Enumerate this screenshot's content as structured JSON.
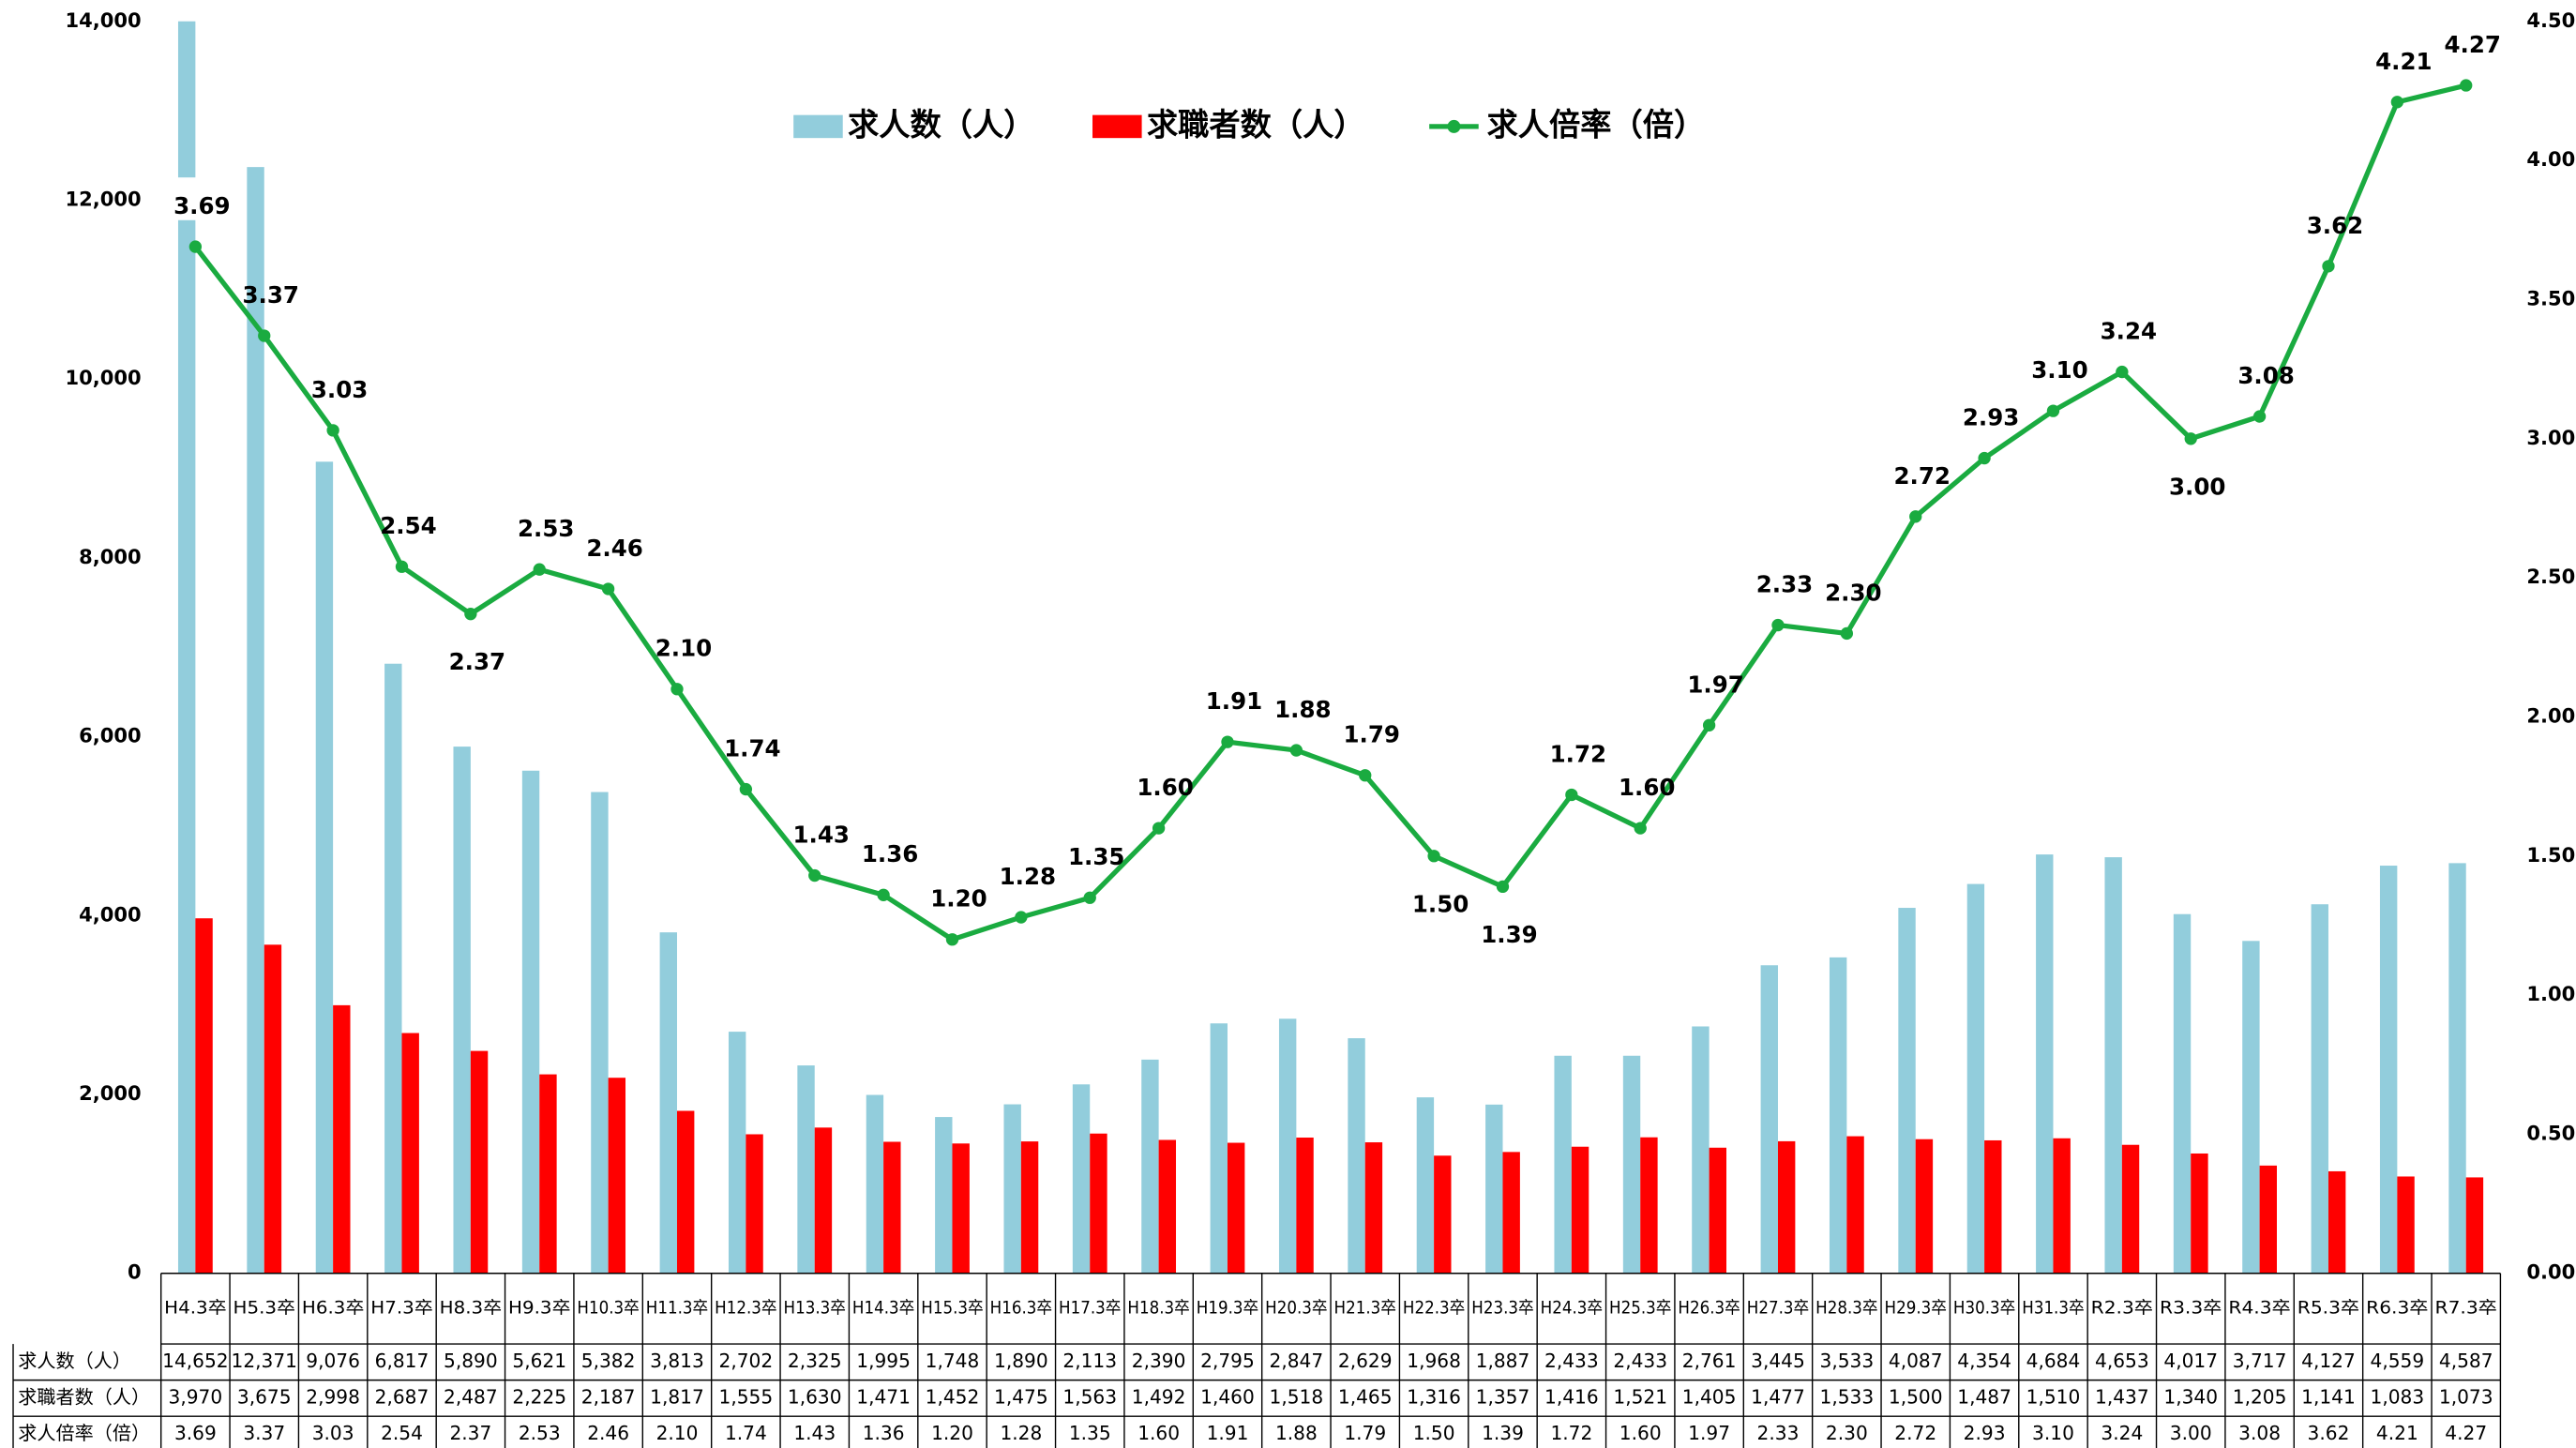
{
  "chart_data": {
    "type": "bar-line",
    "categories": [
      "H4.3卒",
      "H5.3卒",
      "H6.3卒",
      "H7.3卒",
      "H8.3卒",
      "H9.3卒",
      "H10.3卒",
      "H11.3卒",
      "H12.3卒",
      "H13.3卒",
      "H14.3卒",
      "H15.3卒",
      "H16.3卒",
      "H17.3卒",
      "H18.3卒",
      "H19.3卒",
      "H20.3卒",
      "H21.3卒",
      "H22.3卒",
      "H23.3卒",
      "H24.3卒",
      "H25.3卒",
      "H26.3卒",
      "H27.3卒",
      "H28.3卒",
      "H29.3卒",
      "H30.3卒",
      "H31.3卒",
      "R2.3卒",
      "R3.3卒",
      "R4.3卒",
      "R5.3卒",
      "R6.3卒",
      "R7.3卒"
    ],
    "series": [
      {
        "name": "求人数（人）",
        "color": "#92cddc",
        "kind": "bar",
        "values": [
          14652,
          12371,
          9076,
          6817,
          5890,
          5621,
          5382,
          3813,
          2702,
          2325,
          1995,
          1748,
          1890,
          2113,
          2390,
          2795,
          2847,
          2629,
          1968,
          1887,
          2433,
          2433,
          2761,
          3445,
          3533,
          4087,
          4354,
          4684,
          4653,
          4017,
          3717,
          4127,
          4559,
          4587
        ],
        "value_labels": [
          "14,652",
          "12,371",
          "9,076",
          "6,817",
          "5,890",
          "5,621",
          "5,382",
          "3,813",
          "2,702",
          "2,325",
          "1,995",
          "1,748",
          "1,890",
          "2,113",
          "2,390",
          "2,795",
          "2,847",
          "2,629",
          "1,968",
          "1,887",
          "2,433",
          "2,433",
          "2,761",
          "3,445",
          "3,533",
          "4,087",
          "4,354",
          "4,684",
          "4,653",
          "4,017",
          "3,717",
          "4,127",
          "4,559",
          "4,587"
        ]
      },
      {
        "name": "求職者数（人）",
        "color": "#ff0000",
        "kind": "bar",
        "values": [
          3970,
          3675,
          2998,
          2687,
          2487,
          2225,
          2187,
          1817,
          1555,
          1630,
          1471,
          1452,
          1475,
          1563,
          1492,
          1460,
          1518,
          1465,
          1316,
          1357,
          1416,
          1521,
          1405,
          1477,
          1533,
          1500,
          1487,
          1510,
          1437,
          1340,
          1205,
          1141,
          1083,
          1073
        ],
        "value_labels": [
          "3,970",
          "3,675",
          "2,998",
          "2,687",
          "2,487",
          "2,225",
          "2,187",
          "1,817",
          "1,555",
          "1,630",
          "1,471",
          "1,452",
          "1,475",
          "1,563",
          "1,492",
          "1,460",
          "1,518",
          "1,465",
          "1,316",
          "1,357",
          "1,416",
          "1,521",
          "1,405",
          "1,477",
          "1,533",
          "1,500",
          "1,487",
          "1,510",
          "1,437",
          "1,340",
          "1,205",
          "1,141",
          "1,083",
          "1,073"
        ]
      },
      {
        "name": "求人倍率（倍）",
        "color": "#1aab40",
        "kind": "line",
        "axis": "y2",
        "values": [
          3.69,
          3.37,
          3.03,
          2.54,
          2.37,
          2.53,
          2.46,
          2.1,
          1.74,
          1.43,
          1.36,
          1.2,
          1.28,
          1.35,
          1.6,
          1.91,
          1.88,
          1.79,
          1.5,
          1.39,
          1.72,
          1.6,
          1.97,
          2.33,
          2.3,
          2.72,
          2.93,
          3.1,
          3.24,
          3.0,
          3.08,
          3.62,
          4.21,
          4.27
        ],
        "value_labels": [
          "3.69",
          "3.37",
          "3.03",
          "2.54",
          "2.37",
          "2.53",
          "2.46",
          "2.10",
          "1.74",
          "1.43",
          "1.36",
          "1.20",
          "1.28",
          "1.35",
          "1.60",
          "1.91",
          "1.88",
          "1.79",
          "1.50",
          "1.39",
          "1.72",
          "1.60",
          "1.97",
          "2.33",
          "2.30",
          "2.72",
          "2.93",
          "3.10",
          "3.24",
          "3.00",
          "3.08",
          "3.62",
          "4.21",
          "4.27"
        ]
      }
    ],
    "ylim": [
      0,
      14000
    ],
    "yticks": [
      0,
      {
        "value": 2000,
        "label": "2,000"
      },
      {
        "value": 4000,
        "label": "4,000"
      },
      {
        "value": 6000,
        "label": "6,000"
      },
      {
        "value": 8000,
        "label": "8,000"
      },
      {
        "value": 10000,
        "label": "10,000"
      },
      {
        "value": 12000,
        "label": "12,000"
      },
      {
        "value": 14000,
        "label": "14,000"
      }
    ],
    "y2lim": [
      0,
      4.5
    ],
    "y2ticks": [
      {
        "value": 0,
        "label": "0.00"
      },
      {
        "value": 0.5,
        "label": "0.50"
      },
      {
        "value": 1,
        "label": "1.00"
      },
      {
        "value": 1.5,
        "label": "1.50"
      },
      {
        "value": 2,
        "label": "2.00"
      },
      {
        "value": 2.5,
        "label": "2.50"
      },
      {
        "value": 3,
        "label": "3.00"
      },
      {
        "value": 3.5,
        "label": "3.50"
      },
      {
        "value": 4,
        "label": "4.00"
      },
      {
        "value": 4.5,
        "label": "4.50"
      }
    ],
    "legend": "top"
  }
}
